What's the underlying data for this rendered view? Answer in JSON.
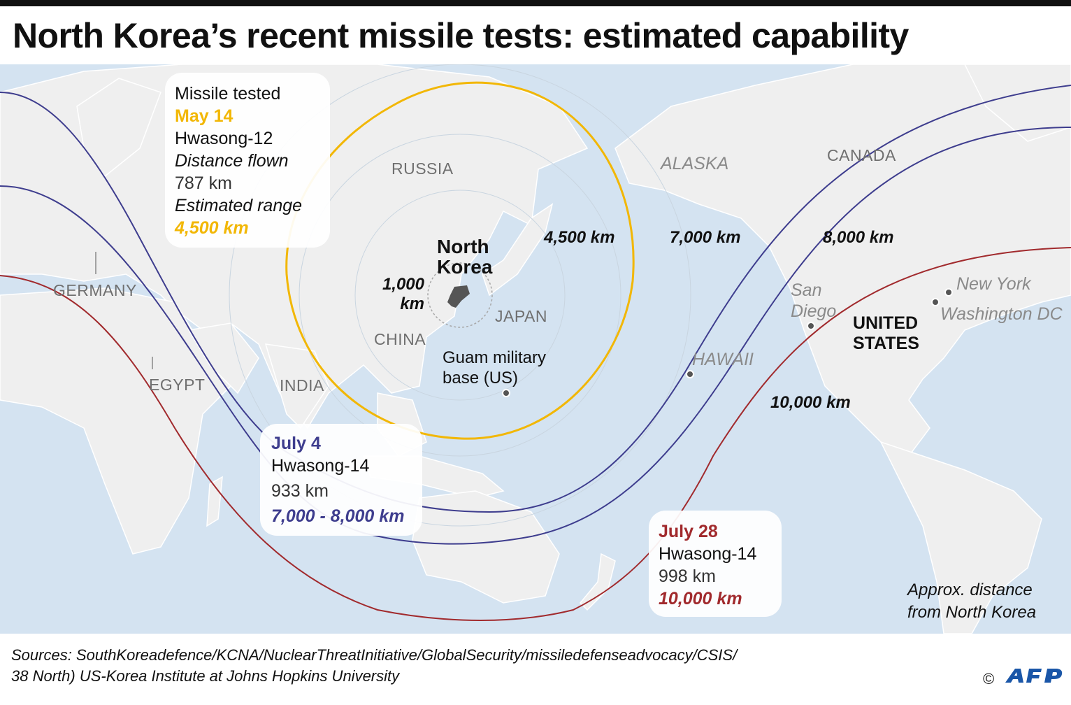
{
  "title": "North Korea’s recent missile tests: estimated capability",
  "map": {
    "countries": {
      "russia": "RUSSIA",
      "germany": "GERMANY",
      "egypt": "EGYPT",
      "india": "INDIA",
      "china": "CHINA",
      "japan": "JAPAN",
      "canada": "CANADA"
    },
    "places": {
      "alaska": "ALASKA",
      "hawaii": "HAWAII",
      "san_diego": "San Diego",
      "new_york": "New York",
      "washington": "Washington DC"
    },
    "north_korea": "North Korea",
    "united_states": "UNITED STATES",
    "guam": "Guam military base (US)",
    "ring_labels": {
      "r1000": "1,000 km",
      "r4500": "4,500 km",
      "r7000": "7,000 km",
      "r8000": "8,000 km",
      "r10000": "10,000 km"
    },
    "colors": {
      "ocean": "#d4e3f1",
      "land": "#efefef",
      "yellow_ring": "#f2b705",
      "blue_ring": "#3e3d8e",
      "red_ring": "#a12a2d"
    }
  },
  "tests": [
    {
      "heading": "Missile tested",
      "date": "May 14",
      "missile": "Hwasong-12",
      "distance_label": "Distance flown",
      "distance": "787 km",
      "range_label": "Estimated range",
      "range": "4,500 km",
      "color": "#f2b705"
    },
    {
      "date": "July 4",
      "missile": "Hwasong-14",
      "distance": "933 km",
      "range": "7,000 - 8,000 km",
      "color": "#3e3d8e"
    },
    {
      "date": "July 28",
      "missile": "Hwasong-14",
      "distance": "998 km",
      "range": "10,000 km",
      "color": "#a12a2d"
    }
  ],
  "footnote": {
    "line1": "Approx. distance",
    "line2": "from North Korea"
  },
  "sources": {
    "line1": "Sources: SouthKoreadefence/KCNA/NuclearThreatInitiative/GlobalSecurity/missiledefenseadvocacy/CSIS/",
    "line2": "38 North) US-Korea Institute at Johns Hopkins University"
  },
  "credit": {
    "copyright": "©",
    "agency": "AFP"
  }
}
